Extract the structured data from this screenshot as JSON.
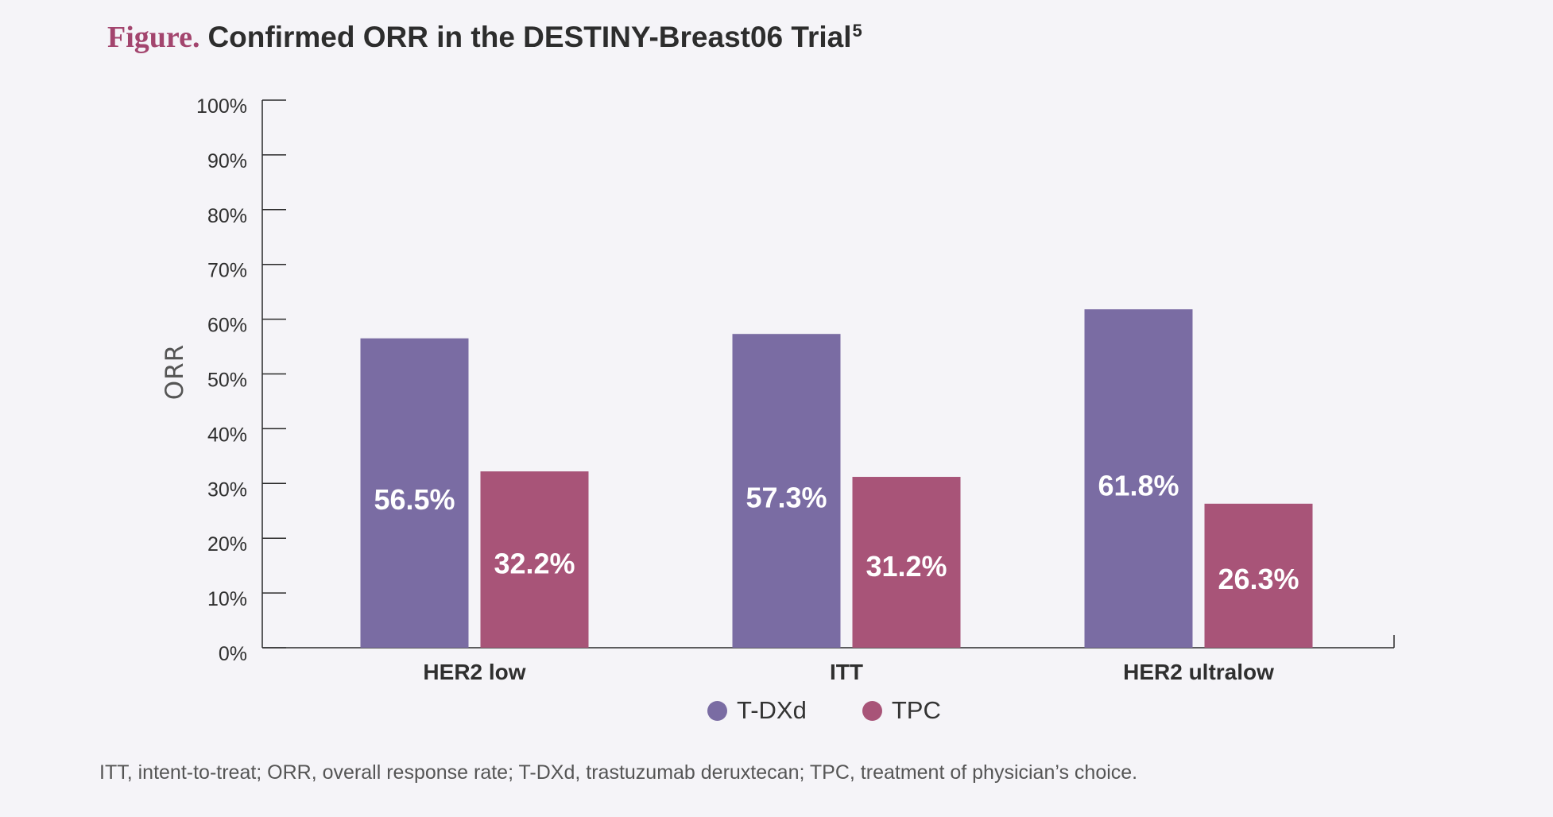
{
  "header": {
    "prefix": "Figure.",
    "title": "Confirmed ORR in the DESTINY-Breast06 Trial",
    "superscript": "5"
  },
  "footnote": "ITT, intent-to-treat; ORR, overall response rate; T-DXd, trastuzumab deruxtecan; TPC, treatment of physician’s choice.",
  "legend": [
    {
      "name": "T-DXd",
      "color": "#7a6ca3"
    },
    {
      "name": "TPC",
      "color": "#a85478"
    }
  ],
  "chart_data": {
    "type": "bar",
    "title": "Confirmed ORR in the DESTINY-Breast06 Trial",
    "xlabel": "",
    "ylabel": "ORR",
    "ylim": [
      0,
      100
    ],
    "yticks": [
      "0%",
      "10%",
      "20%",
      "30%",
      "40%",
      "50%",
      "60%",
      "70%",
      "80%",
      "90%",
      "100%"
    ],
    "grid": false,
    "legend_position": "bottom",
    "categories": [
      "HER2 low",
      "ITT",
      "HER2 ultralow"
    ],
    "series": [
      {
        "name": "T-DXd",
        "color": "#7a6ca3",
        "values": [
          56.5,
          57.3,
          61.8
        ],
        "labels": [
          "56.5%",
          "57.3%",
          "61.8%"
        ]
      },
      {
        "name": "TPC",
        "color": "#a85478",
        "values": [
          32.2,
          31.2,
          26.3
        ],
        "labels": [
          "32.2%",
          "31.2%",
          "26.3%"
        ]
      }
    ]
  }
}
